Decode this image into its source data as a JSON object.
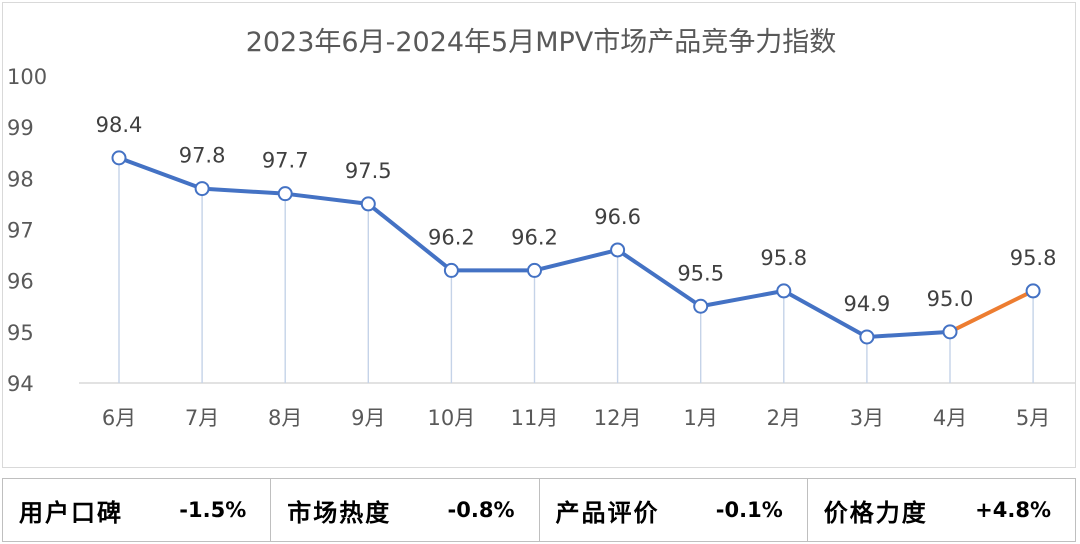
{
  "chart_data": {
    "type": "line",
    "title": "2023年6月-2024年5月MPV市场产品竞争力指数",
    "categories": [
      "6月",
      "7月",
      "8月",
      "9月",
      "10月",
      "11月",
      "12月",
      "1月",
      "2月",
      "3月",
      "4月",
      "5月"
    ],
    "values": [
      98.4,
      97.8,
      97.7,
      97.5,
      96.2,
      96.2,
      96.6,
      95.5,
      95.8,
      94.9,
      95.0,
      95.8
    ],
    "value_labels": [
      "98.4",
      "97.8",
      "97.7",
      "97.5",
      "96.2",
      "96.2",
      "96.6",
      "95.5",
      "95.8",
      "94.9",
      "95.0",
      "95.8"
    ],
    "yticks": [
      "94",
      "95",
      "96",
      "97",
      "98",
      "99",
      "100"
    ],
    "ylim": [
      94,
      100
    ],
    "xlabel": "",
    "ylabel": "",
    "grid": false,
    "series_color": "#4472c4",
    "highlight_color": "#ed7d31",
    "highlight_last_segment": true
  },
  "metrics": [
    {
      "label": "用户口碑",
      "value": "-1.5%"
    },
    {
      "label": "市场热度",
      "value": "-0.8%"
    },
    {
      "label": "产品评价",
      "value": "-0.1%"
    },
    {
      "label": "价格力度",
      "value": "+4.8%"
    }
  ]
}
